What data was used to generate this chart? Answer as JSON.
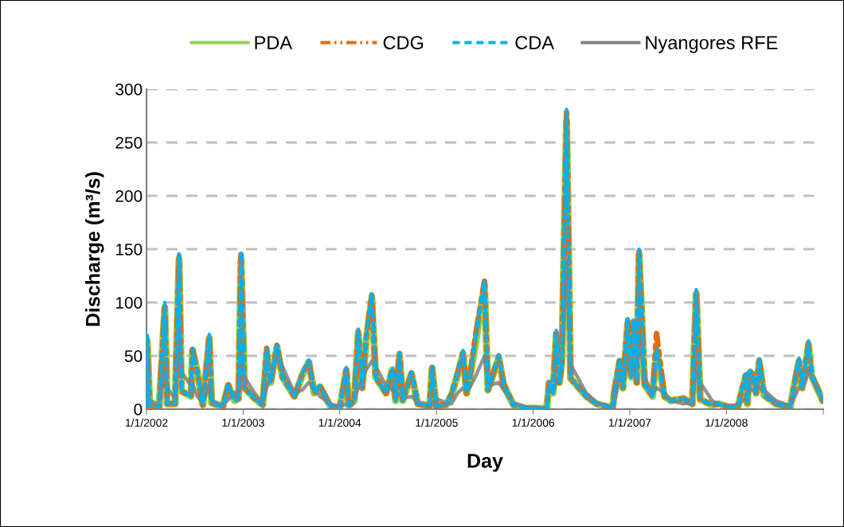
{
  "chart_data": {
    "type": "line",
    "xlabel": "Day",
    "ylabel": "Discharge (m³/s)",
    "x": [
      "2002-01-01",
      "2002-01-04",
      "2002-01-13",
      "2002-02-18",
      "2002-03-11",
      "2002-03-20",
      "2002-04-19",
      "2002-05-04",
      "2002-05-13",
      "2002-06-18",
      "2002-06-24",
      "2002-07-12",
      "2002-08-02",
      "2002-08-26",
      "2002-09-04",
      "2002-10-16",
      "2002-11-06",
      "2002-11-30",
      "2002-12-15",
      "2002-12-24",
      "2003-01-06",
      "2003-02-14",
      "2003-03-16",
      "2003-03-31",
      "2003-04-15",
      "2003-05-09",
      "2003-05-30",
      "2003-07-14",
      "2003-08-13",
      "2003-09-06",
      "2003-09-27",
      "2003-10-18",
      "2003-11-26",
      "2004-01-01",
      "2004-01-26",
      "2004-02-04",
      "2004-02-25",
      "2004-03-11",
      "2004-03-26",
      "2004-04-10",
      "2004-05-01",
      "2004-05-16",
      "2004-06-24",
      "2004-07-18",
      "2004-07-30",
      "2004-08-14",
      "2004-08-26",
      "2004-09-28",
      "2004-10-22",
      "2004-12-06",
      "2004-12-15",
      "2004-12-30",
      "2005-02-05",
      "2005-02-26",
      "2005-03-21",
      "2005-04-11",
      "2005-04-24",
      "2005-05-06",
      "2005-05-27",
      "2005-07-01",
      "2005-07-14",
      "2005-08-24",
      "2005-09-11",
      "2005-10-18",
      "2005-12-02",
      "2006-02-21",
      "2006-03-02",
      "2006-03-17",
      "2006-03-29",
      "2006-04-10",
      "2006-04-19",
      "2006-05-07",
      "2006-05-22",
      "2006-07-21",
      "2006-08-29",
      "2006-10-28",
      "2006-11-03",
      "2006-11-24",
      "2006-12-06",
      "2006-12-24",
      "2007-01-06",
      "2007-01-15",
      "2007-01-27",
      "2007-02-05",
      "2007-02-26",
      "2007-03-28",
      "2007-04-12",
      "2007-05-12",
      "2007-06-05",
      "2007-07-23",
      "2007-08-25",
      "2007-09-09",
      "2007-09-24",
      "2007-11-08",
      "2007-12-05",
      "2008-01-08",
      "2008-02-13",
      "2008-03-14",
      "2008-03-20",
      "2008-03-29",
      "2008-04-10",
      "2008-04-22",
      "2008-05-04",
      "2008-05-22",
      "2008-07-06",
      "2008-08-29",
      "2008-10-01",
      "2008-10-13",
      "2008-10-25",
      "2008-11-06",
      "2008-11-18",
      "2008-12-30"
    ],
    "series": [
      {
        "name": "PDA",
        "color": "#92d050",
        "line_style": "solid",
        "values": [
          2,
          62,
          3,
          2,
          95,
          5,
          5,
          140,
          17,
          12,
          55,
          35,
          4,
          66,
          6,
          2,
          22,
          8,
          10,
          140,
          20,
          10,
          4,
          52,
          25,
          58,
          30,
          12,
          32,
          44,
          15,
          21,
          3,
          1,
          36,
          3,
          8,
          70,
          20,
          64,
          104,
          30,
          15,
          37,
          8,
          50,
          8,
          33,
          5,
          3,
          38,
          3,
          4,
          13,
          32,
          52,
          15,
          28,
          60,
          116,
          18,
          48,
          23,
          4,
          1,
          0.5,
          24,
          15,
          70,
          25,
          43,
          270,
          29,
          12,
          5,
          1,
          15,
          45,
          20,
          80,
          30,
          80,
          25,
          145,
          23,
          12,
          55,
          12,
          8,
          10,
          5,
          108,
          9,
          4,
          5,
          2,
          2,
          31,
          5,
          34,
          31,
          15,
          44,
          13,
          5,
          2,
          45,
          20,
          39,
          60,
          31,
          8
        ]
      },
      {
        "name": "CDG",
        "color": "#e36c09",
        "line_style": "dashdot",
        "values": [
          2,
          65,
          3,
          2,
          98,
          5,
          5,
          143,
          17,
          12,
          56,
          35,
          4,
          68,
          6,
          2,
          23,
          8,
          10,
          145,
          20,
          10,
          4,
          57,
          25,
          60,
          30,
          12,
          33,
          45,
          15,
          22,
          3,
          1,
          38,
          3,
          8,
          73,
          20,
          67,
          107,
          30,
          15,
          38,
          8,
          52,
          8,
          34,
          5,
          3,
          39,
          3,
          4,
          14,
          33,
          54,
          15,
          29,
          68,
          120,
          18,
          50,
          24,
          4,
          1,
          0.5,
          25,
          15,
          73,
          25,
          44,
          278,
          29,
          12,
          5,
          1,
          16,
          47,
          20,
          83,
          30,
          83,
          25,
          148,
          23,
          12,
          71,
          12,
          8,
          10,
          5,
          110,
          9,
          4,
          5,
          2,
          2,
          32,
          5,
          36,
          33,
          15,
          47,
          13,
          5,
          2,
          46,
          20,
          40,
          62,
          32,
          8
        ]
      },
      {
        "name": "CDA",
        "color": "#00b0f0",
        "line_style": "dashed",
        "values": [
          2,
          69,
          3,
          2,
          100,
          5,
          5,
          146,
          17,
          12,
          57,
          35,
          4,
          70,
          6,
          2,
          23,
          8,
          10,
          148,
          20,
          10,
          4,
          57,
          25,
          61,
          30,
          12,
          34,
          46,
          15,
          22,
          3,
          1,
          39,
          3,
          8,
          75,
          20,
          68,
          109,
          30,
          15,
          39,
          8,
          53,
          8,
          35,
          5,
          3,
          40,
          3,
          4,
          14,
          34,
          55,
          15,
          29,
          64,
          121,
          18,
          51,
          24,
          4,
          1,
          0.5,
          25,
          15,
          74,
          25,
          45,
          281,
          29,
          12,
          5,
          1,
          16,
          48,
          20,
          85,
          30,
          85,
          25,
          150,
          23,
          12,
          57,
          12,
          8,
          10,
          5,
          112,
          9,
          4,
          5,
          2,
          2,
          33,
          5,
          36,
          33,
          15,
          47,
          13,
          5,
          2,
          48,
          20,
          41,
          64,
          33,
          8
        ]
      },
      {
        "name": "Nyangores RFE",
        "color": "#808080",
        "line_style": "solid",
        "values": [
          5,
          15,
          8,
          5,
          35,
          20,
          10,
          72,
          35,
          22,
          24,
          12,
          6,
          22,
          8,
          4,
          9,
          16,
          10,
          60,
          30,
          15,
          5,
          20,
          30,
          48,
          40,
          15,
          18,
          25,
          20,
          12,
          5,
          2,
          5,
          4,
          10,
          20,
          28,
          37,
          45,
          40,
          22,
          18,
          12,
          15,
          10,
          12,
          6,
          3,
          5,
          10,
          6,
          5,
          15,
          20,
          18,
          20,
          30,
          50,
          22,
          25,
          18,
          6,
          2,
          1,
          20,
          18,
          25,
          30,
          35,
          139,
          42,
          15,
          6,
          2,
          5,
          30,
          25,
          42,
          35,
          40,
          30,
          69,
          30,
          15,
          20,
          15,
          8,
          5,
          6,
          37,
          25,
          8,
          4,
          3,
          4,
          10,
          15,
          20,
          18,
          20,
          20,
          18,
          8,
          3,
          20,
          22,
          25,
          37,
          30,
          8
        ]
      }
    ],
    "xlim": [
      "2002-01-01",
      "2009-01-01"
    ],
    "xticks": [
      {
        "value": "2002-01-01",
        "label": "1/1/2002"
      },
      {
        "value": "2003-01-01",
        "label": "1/1/2003"
      },
      {
        "value": "2004-01-01",
        "label": "1/1/2004"
      },
      {
        "value": "2005-01-01",
        "label": "1/1/2005"
      },
      {
        "value": "2006-01-01",
        "label": "1/1/2006"
      },
      {
        "value": "2007-01-01",
        "label": "1/1/2007"
      },
      {
        "value": "2008-01-01",
        "label": "1/1/2008"
      },
      {
        "value": "2009-01-01",
        "label": null
      }
    ],
    "ylim": [
      0,
      300
    ],
    "yticks": [
      0,
      50,
      100,
      150,
      200,
      250,
      300
    ],
    "grid": "y",
    "legend": "top",
    "marker": "none"
  }
}
